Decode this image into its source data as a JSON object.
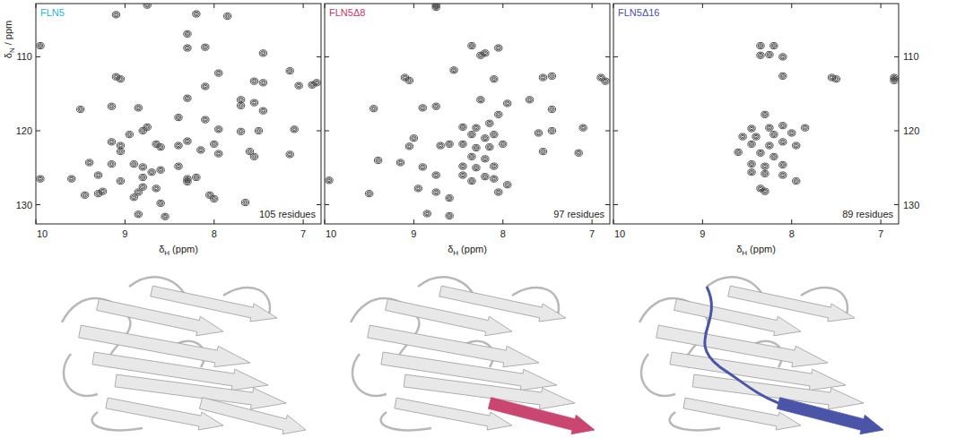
{
  "chart_data": [
    {
      "type": "scatter",
      "title": "FLN5",
      "x_label": "δH (ppm)",
      "y_label": "δN / ppm",
      "annotation": "105 residues",
      "xlim": [
        10,
        6.8
      ],
      "ylim": [
        102.8,
        132.6
      ],
      "xticks": [
        10,
        9,
        8,
        7
      ],
      "yticks": [
        110,
        120,
        130
      ],
      "color": "#3c3c3c",
      "marker": "contour",
      "tick_labels": true,
      "x": [
        9.95,
        9.95,
        9.1,
        8.75,
        8.2,
        7.85,
        7.45,
        8.3,
        8.1,
        8.3,
        9.1,
        9.05,
        7.95,
        7.55,
        7.45,
        7.15,
        6.9,
        6.85,
        7.05,
        8.1,
        7.7,
        7.55,
        7.7,
        7.45,
        9.5,
        9.15,
        8.85,
        8.3,
        8.4,
        8.75,
        8.8,
        8.1,
        7.95,
        7.7,
        7.5,
        7.1,
        8.95,
        9.15,
        9.05,
        9.05,
        8.65,
        8.6,
        8.4,
        8.3,
        8.15,
        8.0,
        7.6,
        7.95,
        7.55,
        7.15,
        9.4,
        9.15,
        8.9,
        8.8,
        8.6,
        8.7,
        8.4,
        8.3,
        8.2,
        9.6,
        9.3,
        9.05,
        8.8,
        9.45,
        9.3,
        8.8,
        8.65,
        8.85,
        8.3,
        8.05,
        8.0,
        7.65,
        8.6,
        8.9,
        8.85,
        8.55,
        9.25
      ],
      "values": [
        108.5,
        126.5,
        104.3,
        103.0,
        104.2,
        104.5,
        109.5,
        106.9,
        108.7,
        108.8,
        112.7,
        113.0,
        112.2,
        113.3,
        113.5,
        111.9,
        113.8,
        113.5,
        113.9,
        114.0,
        115.8,
        116.2,
        116.6,
        117.3,
        117.1,
        116.7,
        116.9,
        115.6,
        118.2,
        119.5,
        120.0,
        118.5,
        119.8,
        120.1,
        120.0,
        119.8,
        120.5,
        121.5,
        122.0,
        122.8,
        121.8,
        122.2,
        122.0,
        121.4,
        122.6,
        121.8,
        122.8,
        123.1,
        123.5,
        123.2,
        124.3,
        124.5,
        124.5,
        124.9,
        125.3,
        125.6,
        124.8,
        126.5,
        126.3,
        126.5,
        126.0,
        126.8,
        126.3,
        128.7,
        128.5,
        127.6,
        127.8,
        128.3,
        126.9,
        128.7,
        129.2,
        129.7,
        129.8,
        129.0,
        131.3,
        131.6,
        128.2
      ]
    },
    {
      "type": "scatter",
      "title": "FLN5Δ8",
      "x_label": "δH (ppm)",
      "annotation": "97 residues",
      "xlim": [
        10,
        6.8
      ],
      "ylim": [
        102.8,
        132.6
      ],
      "xticks": [
        10,
        9,
        8,
        7
      ],
      "yticks": [
        110,
        120,
        130
      ],
      "color": "#3c3c3c",
      "marker": "contour",
      "tick_labels": "x",
      "x": [
        9.95,
        8.75,
        8.75,
        8.35,
        8.05,
        8.2,
        8.25,
        7.55,
        7.45,
        6.9,
        6.85,
        9.1,
        9.05,
        8.55,
        8.1,
        9.45,
        8.9,
        8.75,
        8.25,
        7.95,
        7.7,
        7.45,
        8.05,
        7.45,
        7.1,
        7.6,
        9.0,
        9.05,
        8.7,
        8.6,
        7.55,
        7.15,
        9.4,
        9.15,
        8.9,
        8.75,
        8.95,
        8.75,
        8.6,
        8.6,
        8.85,
        9.5,
        8.05,
        8.45,
        8.3,
        8.15,
        8.35,
        8.2,
        8.1,
        8.45,
        8.3,
        8.15,
        8.0,
        8.35,
        8.2,
        8.45,
        8.3,
        8.1,
        8.45,
        8.2,
        8.35,
        8.1,
        7.95
      ],
      "values": [
        126.7,
        103.0,
        103.3,
        108.5,
        108.8,
        109.5,
        109.8,
        112.8,
        112.6,
        112.8,
        113.3,
        112.8,
        113.2,
        111.8,
        113.0,
        117.0,
        116.9,
        116.7,
        115.8,
        116.3,
        115.8,
        117.1,
        117.8,
        120.0,
        119.6,
        120.3,
        121.0,
        122.1,
        122.0,
        121.8,
        122.8,
        123.0,
        124.0,
        124.3,
        124.9,
        126.0,
        127.8,
        128.3,
        129.1,
        131.5,
        131.2,
        128.5,
        128.3,
        119.5,
        119.6,
        119.0,
        120.5,
        121.0,
        120.5,
        121.8,
        122.3,
        122.2,
        121.8,
        123.5,
        123.8,
        124.8,
        125.0,
        124.8,
        126.0,
        126.2,
        126.8,
        126.5,
        127.3
      ]
    },
    {
      "type": "scatter",
      "title": "FLN5Δ16",
      "x_label": "δH (ppm)",
      "annotation": "89 residues",
      "xlim": [
        10,
        6.8
      ],
      "ylim": [
        102.8,
        132.6
      ],
      "xticks": [
        10,
        9,
        8,
        7
      ],
      "yticks": [
        110,
        120,
        130
      ],
      "color": "#3c3c3c",
      "marker": "contour",
      "tick_labels": true,
      "x": [
        8.35,
        8.2,
        8.35,
        8.25,
        8.1,
        7.55,
        7.5,
        6.85,
        6.85,
        8.1,
        8.45,
        8.25,
        8.1,
        8.4,
        8.2,
        8.0,
        8.45,
        8.25,
        8.1,
        7.95,
        8.35,
        8.2,
        8.45,
        8.3,
        8.1,
        8.45,
        8.3,
        8.1,
        7.95,
        8.35,
        8.3,
        8.6,
        8.55,
        8.3,
        7.85
      ],
      "values": [
        108.5,
        108.5,
        109.8,
        109.7,
        110.0,
        112.8,
        113.0,
        112.8,
        113.2,
        112.6,
        119.7,
        119.6,
        119.3,
        120.8,
        120.5,
        120.3,
        121.8,
        122.0,
        121.5,
        122.0,
        123.0,
        123.5,
        124.5,
        124.8,
        124.6,
        125.6,
        125.8,
        126.0,
        126.8,
        127.8,
        128.2,
        122.9,
        120.8,
        117.8,
        119.6
      ]
    }
  ]
}
